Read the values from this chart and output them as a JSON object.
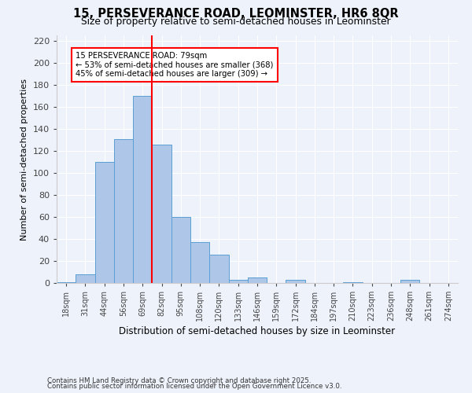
{
  "title_line1": "15, PERSEVERANCE ROAD, LEOMINSTER, HR6 8QR",
  "title_line2": "Size of property relative to semi-detached houses in Leominster",
  "xlabel": "Distribution of semi-detached houses by size in Leominster",
  "ylabel": "Number of semi-detached properties",
  "footnote1": "Contains HM Land Registry data © Crown copyright and database right 2025.",
  "footnote2": "Contains public sector information licensed under the Open Government Licence v3.0.",
  "categories": [
    "18sqm",
    "31sqm",
    "44sqm",
    "56sqm",
    "69sqm",
    "82sqm",
    "95sqm",
    "108sqm",
    "120sqm",
    "133sqm",
    "146sqm",
    "159sqm",
    "172sqm",
    "184sqm",
    "197sqm",
    "210sqm",
    "223sqm",
    "236sqm",
    "248sqm",
    "261sqm",
    "274sqm"
  ],
  "values": [
    1,
    8,
    110,
    131,
    170,
    126,
    60,
    37,
    26,
    3,
    5,
    0,
    3,
    0,
    0,
    1,
    0,
    0,
    3,
    0,
    0
  ],
  "bar_color": "#aec6e8",
  "bar_edge_color": "#5a9fd4",
  "property_label": "15 PERSEVERANCE ROAD: 79sqm",
  "pct_smaller": 53,
  "n_smaller": 368,
  "pct_larger": 45,
  "n_larger": 309,
  "vline_x_index": 4.5,
  "vline_color": "red",
  "annotation_box_color": "red",
  "ylim": [
    0,
    225
  ],
  "yticks": [
    0,
    20,
    40,
    60,
    80,
    100,
    120,
    140,
    160,
    180,
    200,
    220
  ],
  "background_color": "#eef2fb",
  "grid_color": "#ffffff"
}
